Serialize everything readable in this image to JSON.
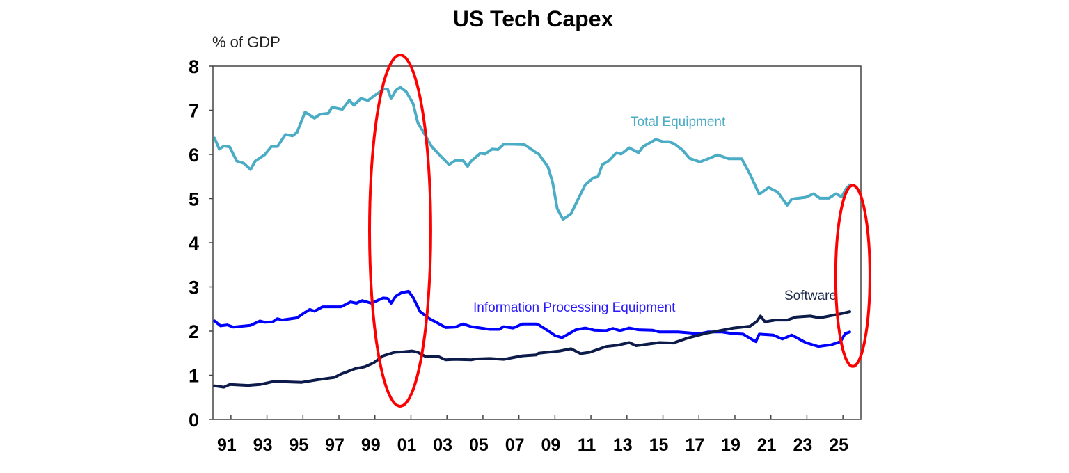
{
  "chart_data": {
    "type": "line",
    "title": "US Tech Capex",
    "ylabel": "% of GDP",
    "xlabel": "",
    "xlim": [
      1990,
      2026
    ],
    "ylim": [
      0,
      8
    ],
    "yticks": [
      0,
      1,
      2,
      3,
      4,
      5,
      6,
      7,
      8
    ],
    "ytick_labels": [
      "0",
      "1",
      "2",
      "3",
      "4",
      "5",
      "6",
      "7",
      "8"
    ],
    "xticks": [
      1991,
      1993,
      1995,
      1997,
      1999,
      2001,
      2003,
      2005,
      2007,
      2009,
      2011,
      2013,
      2015,
      2017,
      2019,
      2021,
      2023,
      2025
    ],
    "xtick_labels": [
      "91",
      "93",
      "95",
      "97",
      "99",
      "01",
      "03",
      "05",
      "07",
      "09",
      "11",
      "13",
      "15",
      "17",
      "19",
      "21",
      "23",
      "25"
    ],
    "grid": false,
    "legend": "inline labels",
    "series": [
      {
        "name": "Total Equipment",
        "color": "#4bacc6",
        "label_color": "#4bacc6",
        "points": [
          [
            1990.09,
            6.37
          ],
          [
            1990.35,
            6.12
          ],
          [
            1990.61,
            6.19
          ],
          [
            1990.93,
            6.17
          ],
          [
            1991.32,
            5.85
          ],
          [
            1991.71,
            5.8
          ],
          [
            1992.09,
            5.66
          ],
          [
            1992.35,
            5.85
          ],
          [
            1992.87,
            5.99
          ],
          [
            1993.25,
            6.18
          ],
          [
            1993.58,
            6.18
          ],
          [
            1994.03,
            6.45
          ],
          [
            1994.42,
            6.42
          ],
          [
            1994.67,
            6.5
          ],
          [
            1995.12,
            6.96
          ],
          [
            1995.64,
            6.82
          ],
          [
            1995.96,
            6.91
          ],
          [
            1996.41,
            6.93
          ],
          [
            1996.61,
            7.07
          ],
          [
            1997.19,
            7.02
          ],
          [
            1997.58,
            7.23
          ],
          [
            1997.83,
            7.11
          ],
          [
            1998.22,
            7.27
          ],
          [
            1998.61,
            7.22
          ],
          [
            1999.0,
            7.34
          ],
          [
            1999.51,
            7.48
          ],
          [
            1999.7,
            7.48
          ],
          [
            1999.9,
            7.26
          ],
          [
            2000.16,
            7.45
          ],
          [
            2000.41,
            7.52
          ],
          [
            2000.74,
            7.42
          ],
          [
            2001.12,
            7.15
          ],
          [
            2001.38,
            6.72
          ],
          [
            2001.77,
            6.45
          ],
          [
            2002.15,
            6.18
          ],
          [
            2002.54,
            6.01
          ],
          [
            2003.12,
            5.77
          ],
          [
            2003.45,
            5.86
          ],
          [
            2003.9,
            5.86
          ],
          [
            2004.15,
            5.73
          ],
          [
            2004.35,
            5.85
          ],
          [
            2004.86,
            6.03
          ],
          [
            2005.12,
            6.01
          ],
          [
            2005.51,
            6.12
          ],
          [
            2005.83,
            6.11
          ],
          [
            2006.15,
            6.23
          ],
          [
            2006.67,
            6.23
          ],
          [
            2007.31,
            6.22
          ],
          [
            2007.96,
            6.04
          ],
          [
            2008.1,
            6.01
          ],
          [
            2008.61,
            5.72
          ],
          [
            2008.87,
            5.37
          ],
          [
            2009.13,
            4.77
          ],
          [
            2009.45,
            4.53
          ],
          [
            2009.9,
            4.66
          ],
          [
            2010.29,
            4.99
          ],
          [
            2010.68,
            5.31
          ],
          [
            2011.13,
            5.47
          ],
          [
            2011.39,
            5.5
          ],
          [
            2011.64,
            5.77
          ],
          [
            2011.97,
            5.85
          ],
          [
            2012.42,
            6.04
          ],
          [
            2012.68,
            6.01
          ],
          [
            2013.13,
            6.15
          ],
          [
            2013.64,
            6.04
          ],
          [
            2013.9,
            6.18
          ],
          [
            2014.61,
            6.34
          ],
          [
            2015.0,
            6.29
          ],
          [
            2015.32,
            6.29
          ],
          [
            2015.64,
            6.24
          ],
          [
            2016.09,
            6.1
          ],
          [
            2016.48,
            5.91
          ],
          [
            2017.06,
            5.83
          ],
          [
            2017.51,
            5.9
          ],
          [
            2018.03,
            5.99
          ],
          [
            2018.67,
            5.9
          ],
          [
            2019.38,
            5.9
          ],
          [
            2019.84,
            5.55
          ],
          [
            2020.35,
            5.1
          ],
          [
            2020.87,
            5.25
          ],
          [
            2021.38,
            5.15
          ],
          [
            2021.9,
            4.85
          ],
          [
            2022.16,
            4.99
          ],
          [
            2022.93,
            5.03
          ],
          [
            2023.38,
            5.11
          ],
          [
            2023.71,
            5.01
          ],
          [
            2024.22,
            5.01
          ],
          [
            2024.61,
            5.11
          ],
          [
            2024.93,
            5.04
          ],
          [
            2025.19,
            5.23
          ],
          [
            2025.38,
            5.31
          ]
        ]
      },
      {
        "name": "Information Processing Equipment",
        "color": "#0000ff",
        "label_color": "#2a1aff",
        "points": [
          [
            1990.09,
            2.23
          ],
          [
            1990.42,
            2.12
          ],
          [
            1990.8,
            2.14
          ],
          [
            1991.13,
            2.09
          ],
          [
            1992.09,
            2.13
          ],
          [
            1992.61,
            2.23
          ],
          [
            1992.87,
            2.2
          ],
          [
            1993.32,
            2.21
          ],
          [
            1993.58,
            2.28
          ],
          [
            1993.83,
            2.25
          ],
          [
            1994.67,
            2.3
          ],
          [
            1995.06,
            2.41
          ],
          [
            1995.38,
            2.49
          ],
          [
            1995.64,
            2.45
          ],
          [
            1996.09,
            2.55
          ],
          [
            1996.61,
            2.55
          ],
          [
            1997.12,
            2.55
          ],
          [
            1997.64,
            2.66
          ],
          [
            1997.97,
            2.63
          ],
          [
            1998.29,
            2.69
          ],
          [
            1998.8,
            2.63
          ],
          [
            1999.45,
            2.75
          ],
          [
            1999.7,
            2.74
          ],
          [
            1999.9,
            2.63
          ],
          [
            2000.16,
            2.79
          ],
          [
            2000.48,
            2.87
          ],
          [
            2000.87,
            2.9
          ],
          [
            2001.12,
            2.76
          ],
          [
            2001.51,
            2.44
          ],
          [
            2002.03,
            2.28
          ],
          [
            2002.54,
            2.17
          ],
          [
            2002.93,
            2.08
          ],
          [
            2003.45,
            2.09
          ],
          [
            2003.9,
            2.16
          ],
          [
            2004.35,
            2.1
          ],
          [
            2005.38,
            2.04
          ],
          [
            2005.9,
            2.04
          ],
          [
            2006.15,
            2.1
          ],
          [
            2006.67,
            2.07
          ],
          [
            2007.19,
            2.16
          ],
          [
            2007.96,
            2.16
          ],
          [
            2008.1,
            2.14
          ],
          [
            2008.61,
            2.01
          ],
          [
            2009.0,
            1.9
          ],
          [
            2009.39,
            1.85
          ],
          [
            2010.16,
            2.03
          ],
          [
            2010.68,
            2.07
          ],
          [
            2011.19,
            2.02
          ],
          [
            2011.84,
            2.01
          ],
          [
            2012.22,
            2.06
          ],
          [
            2012.61,
            2.01
          ],
          [
            2013.13,
            2.07
          ],
          [
            2013.64,
            2.03
          ],
          [
            2014.42,
            2.02
          ],
          [
            2014.8,
            1.98
          ],
          [
            2015.84,
            1.98
          ],
          [
            2017.0,
            1.94
          ],
          [
            2017.51,
            1.98
          ],
          [
            2018.29,
            1.98
          ],
          [
            2018.93,
            1.94
          ],
          [
            2019.45,
            1.93
          ],
          [
            2020.16,
            1.76
          ],
          [
            2020.35,
            1.93
          ],
          [
            2021.13,
            1.91
          ],
          [
            2021.64,
            1.82
          ],
          [
            2022.16,
            1.91
          ],
          [
            2022.93,
            1.74
          ],
          [
            2023.64,
            1.65
          ],
          [
            2024.35,
            1.69
          ],
          [
            2024.87,
            1.76
          ],
          [
            2025.12,
            1.94
          ],
          [
            2025.38,
            1.98
          ]
        ]
      },
      {
        "name": "Software",
        "color": "#0d1b4a",
        "label_color": "#1f2a4a",
        "points": [
          [
            1990.09,
            0.76
          ],
          [
            1990.61,
            0.73
          ],
          [
            1990.93,
            0.79
          ],
          [
            1991.96,
            0.77
          ],
          [
            1992.61,
            0.79
          ],
          [
            1993.38,
            0.86
          ],
          [
            1994.93,
            0.84
          ],
          [
            1995.83,
            0.9
          ],
          [
            1996.74,
            0.95
          ],
          [
            1997.12,
            1.03
          ],
          [
            1997.9,
            1.15
          ],
          [
            1998.42,
            1.19
          ],
          [
            1998.93,
            1.28
          ],
          [
            1999.45,
            1.44
          ],
          [
            2000.09,
            1.52
          ],
          [
            2000.61,
            1.53
          ],
          [
            2001.06,
            1.55
          ],
          [
            2001.38,
            1.52
          ],
          [
            2001.83,
            1.42
          ],
          [
            2002.54,
            1.42
          ],
          [
            2002.93,
            1.35
          ],
          [
            2003.45,
            1.36
          ],
          [
            2004.35,
            1.35
          ],
          [
            2004.61,
            1.37
          ],
          [
            2005.38,
            1.38
          ],
          [
            2006.15,
            1.36
          ],
          [
            2007.19,
            1.44
          ],
          [
            2007.96,
            1.46
          ],
          [
            2008.1,
            1.5
          ],
          [
            2009.26,
            1.55
          ],
          [
            2009.9,
            1.6
          ],
          [
            2010.42,
            1.49
          ],
          [
            2010.93,
            1.52
          ],
          [
            2011.84,
            1.65
          ],
          [
            2012.48,
            1.68
          ],
          [
            2013.13,
            1.74
          ],
          [
            2013.51,
            1.67
          ],
          [
            2014.8,
            1.74
          ],
          [
            2015.58,
            1.73
          ],
          [
            2016.35,
            1.84
          ],
          [
            2017.38,
            1.95
          ],
          [
            2018.93,
            2.07
          ],
          [
            2019.84,
            2.11
          ],
          [
            2020.22,
            2.22
          ],
          [
            2020.42,
            2.34
          ],
          [
            2020.67,
            2.21
          ],
          [
            2021.25,
            2.25
          ],
          [
            2021.9,
            2.25
          ],
          [
            2022.42,
            2.32
          ],
          [
            2023.19,
            2.34
          ],
          [
            2023.71,
            2.3
          ],
          [
            2024.87,
            2.39
          ],
          [
            2025.38,
            2.44
          ]
        ]
      }
    ],
    "annotations": [
      {
        "type": "ellipse",
        "color": "#ff0000",
        "x_range": [
          1998.7,
          2002.1
        ],
        "y_range": [
          0.3,
          8.25
        ]
      },
      {
        "type": "ellipse",
        "color": "#ff0000",
        "x_range": [
          2024.6,
          2026.5
        ],
        "y_range": [
          1.2,
          5.3
        ]
      }
    ]
  }
}
